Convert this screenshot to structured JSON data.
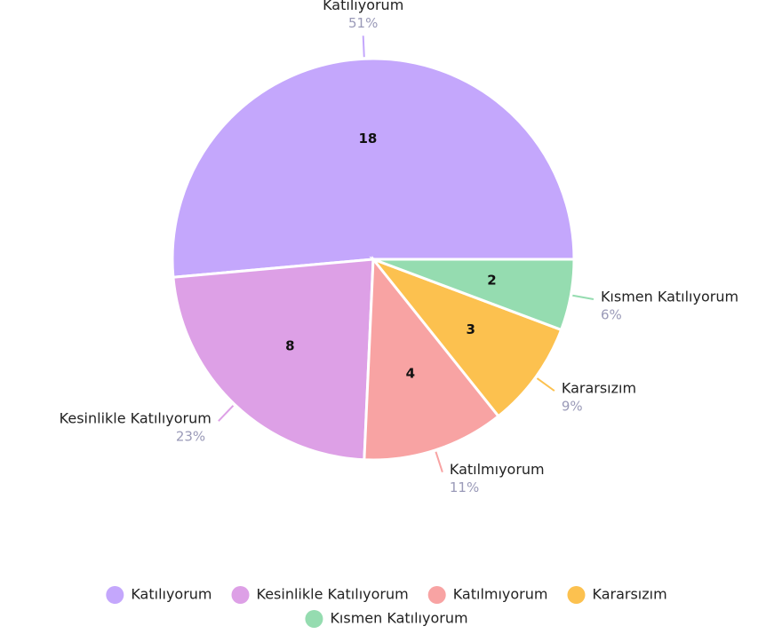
{
  "chart_data": {
    "type": "pie",
    "categories": [
      "Katılıyorum",
      "Kesinlikle Katılıyorum",
      "Katılmıyorum",
      "Kararsızım",
      "Kısmen Katılıyorum"
    ],
    "values": [
      18,
      8,
      4,
      3,
      2
    ],
    "value_labels": [
      "51%",
      "23%",
      "11%",
      "9%",
      "6%"
    ],
    "colors": [
      "#c4a7fc",
      "#dda0e6",
      "#f8a3a3",
      "#fcc14f",
      "#95dcb0"
    ],
    "legend": "bottom"
  }
}
